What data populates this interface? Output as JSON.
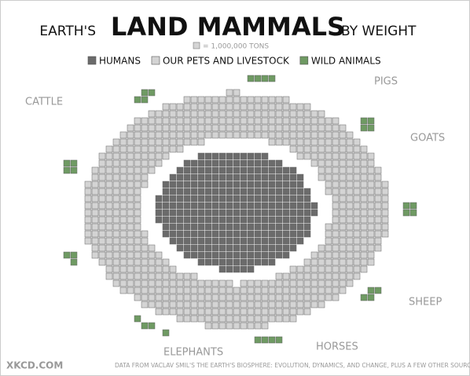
{
  "chart_data": {
    "type": "waffle",
    "title": {
      "pre": "EARTH'S",
      "main": "LAND MAMMALS",
      "post": "BY WEIGHT"
    },
    "unit_label": "= 1,000,000 TONS",
    "categories": [
      "HUMANS",
      "OUR PETS AND LIVESTOCK",
      "WILD ANIMALS"
    ],
    "values": [
      300,
      700,
      35
    ],
    "colors": [
      "#6b6b6b",
      "#d4d4d4",
      "#6f9a63"
    ],
    "annotations": [
      "CATTLE",
      "PIGS",
      "GOATS",
      "SHEEP",
      "HORSES",
      "ELEPHANTS"
    ],
    "footer": "XKCD.COM",
    "source": "DATA FROM VACLAV SMIL'S THE EARTH'S BIOSPHERE: EVOLUTION, DYNAMICS, AND CHANGE, PLUS A FEW OTHER SOURCES."
  }
}
